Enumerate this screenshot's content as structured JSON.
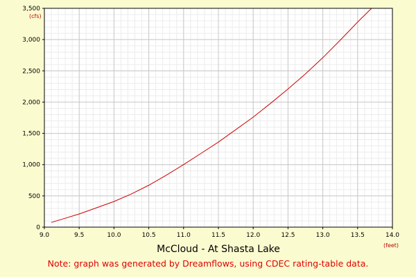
{
  "chart_data": {
    "type": "line",
    "title": "McCloud - At Shasta Lake",
    "note": "Note: graph was generated by Dreamflows, using CDEC rating-table data.",
    "x_unit": "(feet)",
    "y_unit": "(cfs)",
    "xlim": [
      9.0,
      14.0
    ],
    "ylim": [
      0,
      3500
    ],
    "x_ticks": [
      "9.0",
      "9.5",
      "10.0",
      "10.5",
      "11.0",
      "11.5",
      "12.0",
      "12.5",
      "13.0",
      "13.5",
      "14.0"
    ],
    "y_ticks": [
      "0",
      "500",
      "1,000",
      "1,500",
      "2,000",
      "2,500",
      "3,000",
      "3,500"
    ],
    "grid": true,
    "line_color": "#cc0000",
    "series": [
      {
        "x": [
          9.1,
          9.25,
          9.5,
          9.75,
          10.0,
          10.25,
          10.5,
          10.75,
          11.0,
          11.25,
          11.5,
          11.75,
          12.0,
          12.25,
          12.5,
          12.75,
          13.0,
          13.25,
          13.5,
          13.7
        ],
        "y": [
          75,
          125,
          210,
          310,
          410,
          530,
          670,
          830,
          1000,
          1180,
          1360,
          1560,
          1760,
          1980,
          2210,
          2450,
          2710,
          2990,
          3280,
          3500
        ]
      }
    ]
  }
}
